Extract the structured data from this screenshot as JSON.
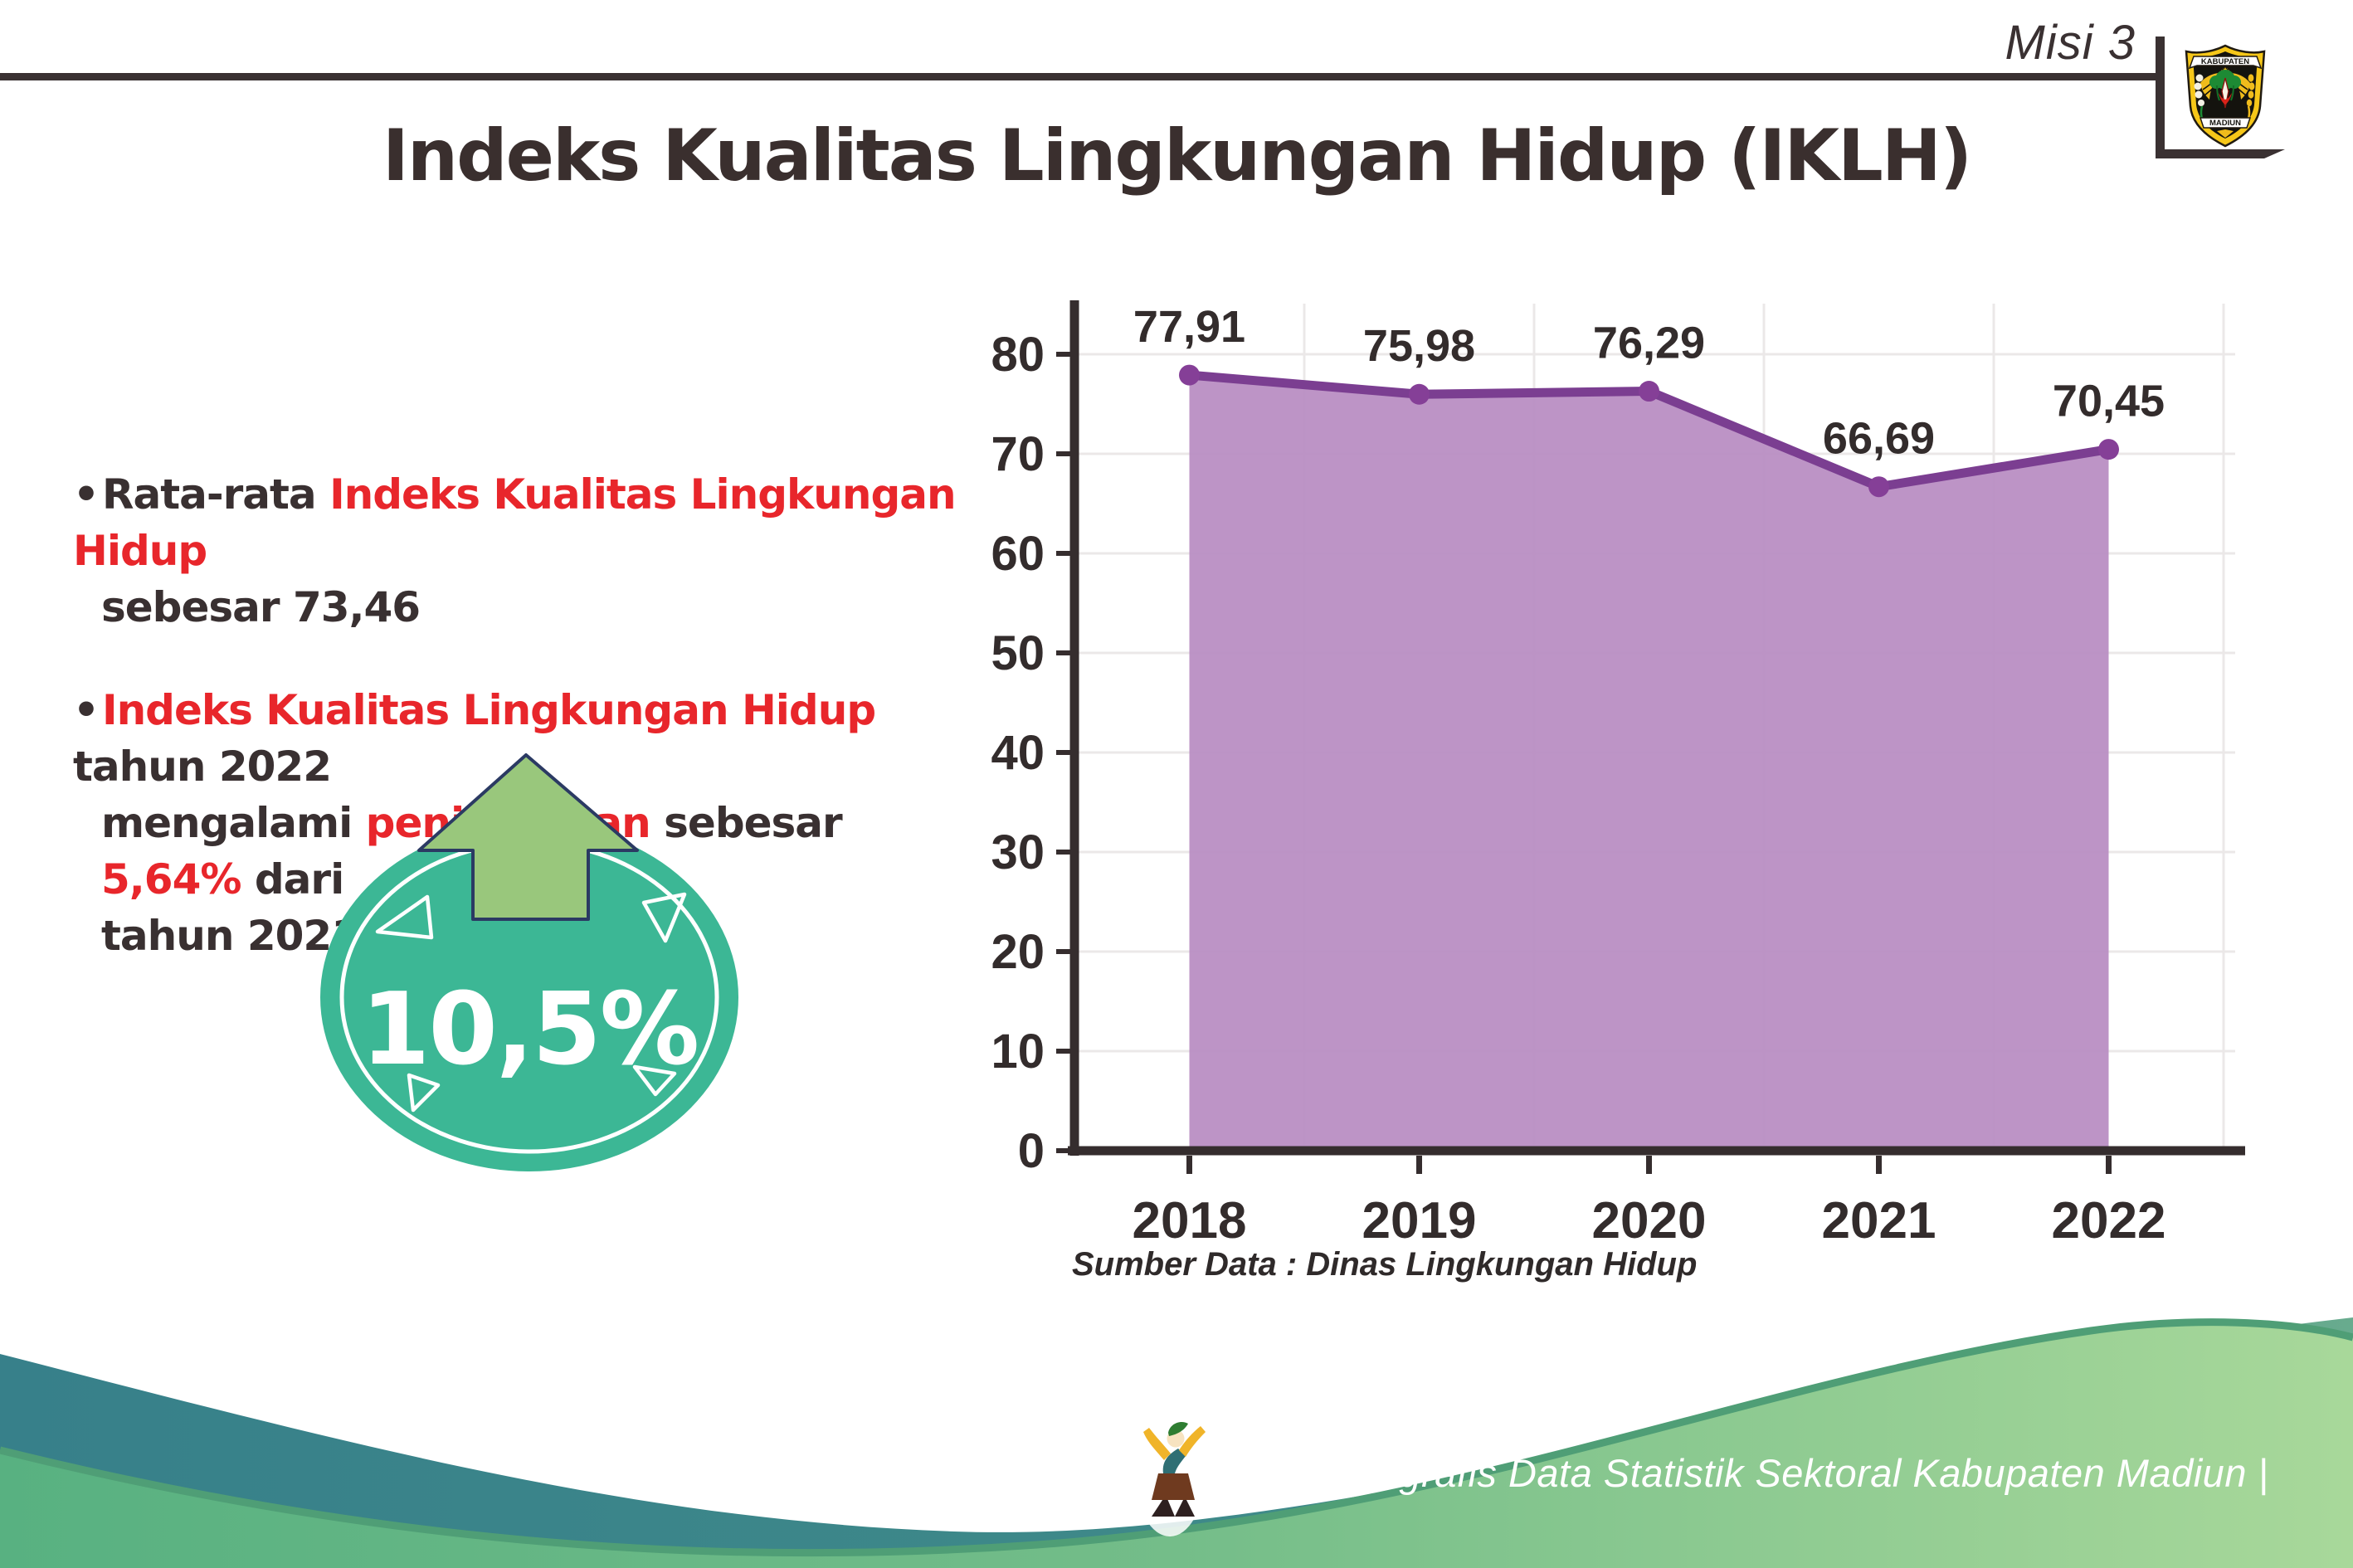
{
  "page": {
    "misi": "Misi 3",
    "title": "Indeks Kualitas Lingkungan Hidup (IKLH)",
    "bullet_char": "•"
  },
  "logo": {
    "top_banner": "KABUPATEN",
    "bottom_banner": "MADIUN"
  },
  "bullets": [
    {
      "lines": [
        [
          {
            "text": "Rata-rata ",
            "color": "dark"
          },
          {
            "text": "Indeks Kualitas Lingkungan Hidup",
            "color": "red"
          }
        ],
        [
          {
            "text": "sebesar 73,46",
            "color": "dark"
          }
        ]
      ]
    },
    {
      "lines": [
        [
          {
            "text": "Indeks Kualitas Lingkungan Hidup",
            "color": "red"
          },
          {
            "text": " tahun 2022",
            "color": "dark"
          }
        ],
        [
          {
            "text": "mengalami ",
            "color": "dark"
          },
          {
            "text": "peningkatan",
            "color": "red"
          },
          {
            "text": " sebesar ",
            "color": "dark"
          },
          {
            "text": "5,64%",
            "color": "red"
          },
          {
            "text": " dari",
            "color": "dark"
          }
        ],
        [
          {
            "text": "tahun 2021",
            "color": "dark"
          }
        ]
      ]
    }
  ],
  "badge": {
    "value": "10,5%"
  },
  "chart_data": {
    "type": "area",
    "title": "",
    "categories": [
      "2018",
      "2019",
      "2020",
      "2021",
      "2022"
    ],
    "values": [
      77.91,
      75.98,
      76.29,
      66.69,
      70.45
    ],
    "point_labels": [
      "77,91",
      "75,98",
      "76,29",
      "66,69",
      "70,45"
    ],
    "xlabel": "",
    "ylabel": "",
    "ylim": [
      0,
      80
    ],
    "yticks": [
      0,
      10,
      20,
      30,
      40,
      50,
      60,
      70,
      80
    ],
    "grid": true,
    "legend": "none",
    "source": "Sumber Data : Dinas Lingkungan Hidup",
    "line_color": "#7b3e91",
    "fill_color": "#b78bc1",
    "marker_color": "#853f97",
    "axis_color": "#352d2e",
    "grid_color": "#ebe8e8",
    "label_color": "#332c2c"
  },
  "footer": {
    "credit": "Media Infografis Data Statistik Sektoral Kabupaten Madiun |"
  },
  "colors": {
    "accent_red": "#e8262b",
    "text_dark": "#393031",
    "badge_teal": "#3cb795",
    "arrow_green": "#99c77c",
    "arrow_outline_navy": "#2b3a63",
    "teal_wave": "#37808a",
    "green_wave": "#58b181",
    "green_wave_light": "#a8d89a",
    "wave_rim": "#4f9e76"
  }
}
